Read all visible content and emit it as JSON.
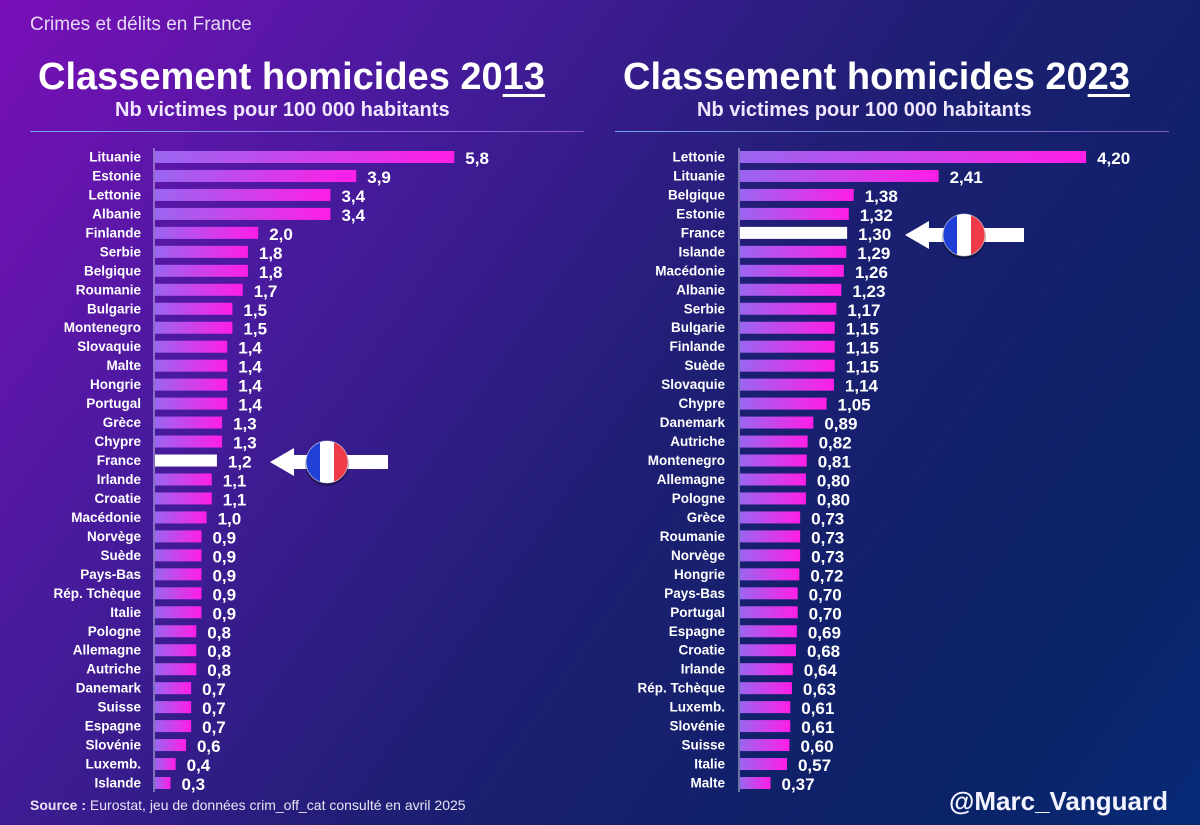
{
  "header": {
    "topic": "Crimes et délits en France"
  },
  "footer": {
    "source_label": "Source :",
    "source_text": " Eurostat, jeu de données crim_off_cat consulté en avril 2025",
    "handle": "@Marc_Vanguard"
  },
  "colors": {
    "bar_start": "#9a66f0",
    "bar_end": "#ff1ee6",
    "highlight": "#ffffff",
    "flag_blue": "#1f3fd6",
    "flag_red": "#ef3a4a"
  },
  "chart_data": [
    {
      "type": "bar",
      "orientation": "horizontal",
      "title_prefix": "Classement homicides 20",
      "title_suffix": "13",
      "subtitle": "Nb victimes pour 100 000 habitants",
      "highlight": "France",
      "highlight_marker": "french-flag-arrow",
      "categories": [
        "Lituanie",
        "Estonie",
        "Lettonie",
        "Albanie",
        "Finlande",
        "Serbie",
        "Belgique",
        "Roumanie",
        "Bulgarie",
        "Montenegro",
        "Slovaquie",
        "Malte",
        "Hongrie",
        "Portugal",
        "Grèce",
        "Chypre",
        "France",
        "Irlande",
        "Croatie",
        "Macédonie",
        "Norvège",
        "Suède",
        "Pays-Bas",
        "Rép. Tchèque",
        "Italie",
        "Pologne",
        "Allemagne",
        "Autriche",
        "Danemark",
        "Suisse",
        "Espagne",
        "Slovénie",
        "Luxemb.",
        "Islande"
      ],
      "values": [
        5.8,
        3.9,
        3.4,
        3.4,
        2.0,
        1.8,
        1.8,
        1.7,
        1.5,
        1.5,
        1.4,
        1.4,
        1.4,
        1.4,
        1.3,
        1.3,
        1.2,
        1.1,
        1.1,
        1.0,
        0.9,
        0.9,
        0.9,
        0.9,
        0.9,
        0.8,
        0.8,
        0.8,
        0.7,
        0.7,
        0.7,
        0.6,
        0.4,
        0.3
      ],
      "value_labels": [
        "5,8",
        "3,9",
        "3,4",
        "3,4",
        "2,0",
        "1,8",
        "1,8",
        "1,7",
        "1,5",
        "1,5",
        "1,4",
        "1,4",
        "1,4",
        "1,4",
        "1,3",
        "1,3",
        "1,2",
        "1,1",
        "1,1",
        "1,0",
        "0,9",
        "0,9",
        "0,9",
        "0,9",
        "0,9",
        "0,8",
        "0,8",
        "0,8",
        "0,7",
        "0,7",
        "0,7",
        "0,6",
        "0,4",
        "0,3"
      ]
    },
    {
      "type": "bar",
      "orientation": "horizontal",
      "title_prefix": "Classement homicides 20",
      "title_suffix": "23",
      "subtitle": "Nb victimes pour 100 000 habitants",
      "highlight": "France",
      "highlight_marker": "french-flag-arrow",
      "categories": [
        "Lettonie",
        "Lituanie",
        "Belgique",
        "Estonie",
        "France",
        "Islande",
        "Macédonie",
        "Albanie",
        "Serbie",
        "Bulgarie",
        "Finlande",
        "Suède",
        "Slovaquie",
        "Chypre",
        "Danemark",
        "Autriche",
        "Montenegro",
        "Allemagne",
        "Pologne",
        "Grèce",
        "Roumanie",
        "Norvège",
        "Hongrie",
        "Pays-Bas",
        "Portugal",
        "Espagne",
        "Croatie",
        "Irlande",
        "Rép. Tchèque",
        "Luxemb.",
        "Slovénie",
        "Suisse",
        "Italie",
        "Malte"
      ],
      "values": [
        4.2,
        2.41,
        1.38,
        1.32,
        1.3,
        1.29,
        1.26,
        1.23,
        1.17,
        1.15,
        1.15,
        1.15,
        1.14,
        1.05,
        0.89,
        0.82,
        0.81,
        0.8,
        0.8,
        0.73,
        0.73,
        0.73,
        0.72,
        0.7,
        0.7,
        0.69,
        0.68,
        0.64,
        0.63,
        0.61,
        0.61,
        0.6,
        0.57,
        0.37
      ],
      "value_labels": [
        "4,20",
        "2,41",
        "1,38",
        "1,32",
        "1,30",
        "1,29",
        "1,26",
        "1,23",
        "1,17",
        "1,15",
        "1,15",
        "1,15",
        "1,14",
        "1,05",
        "0,89",
        "0,82",
        "0,81",
        "0,80",
        "0,80",
        "0,73",
        "0,73",
        "0,73",
        "0,72",
        "0,70",
        "0,70",
        "0,69",
        "0,68",
        "0,64",
        "0,63",
        "0,61",
        "0,61",
        "0,60",
        "0,57",
        "0,37"
      ]
    }
  ]
}
